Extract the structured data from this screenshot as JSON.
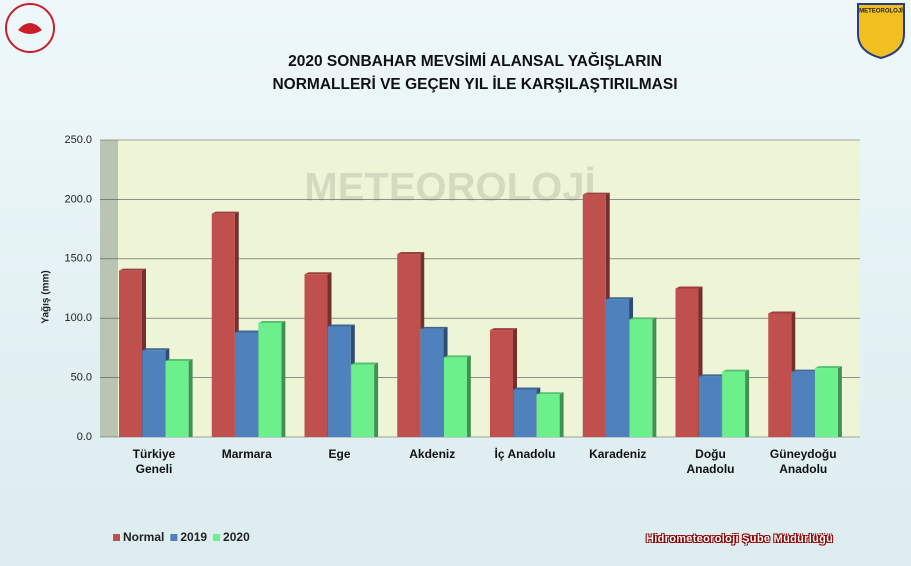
{
  "chart_data": {
    "type": "bar",
    "title": "2020 SONBAHAR MEVSİMİ ALANSAL YAĞIŞLARIN\nNORMALLERİ VE GEÇEN YIL İLE KARŞILAŞTIRILMASI",
    "y_label": "Yağış (mm)",
    "footer": "Hidrometeoroloji Şube Müdürlüğü",
    "logo_text": "METEOROLOJİ",
    "categories": [
      "Türkiye\nGeneli",
      "Marmara",
      "Ege",
      "Akdeniz",
      "İç Anadolu",
      "Karadeniz",
      "Doğu\nAnadolu",
      "Güneydoğu\nAnadolu"
    ],
    "series": [
      {
        "name": "Normal",
        "color": "#c0504d",
        "values": [
          140,
          188,
          137,
          154,
          90,
          204,
          125,
          104
        ]
      },
      {
        "name": "2019",
        "color": "#4f81bd",
        "values": [
          73,
          88,
          93,
          91,
          40,
          116,
          51,
          55
        ]
      },
      {
        "name": "2020",
        "color": "#6cf08c",
        "values": [
          64,
          96,
          61,
          67,
          36,
          99,
          55,
          58
        ]
      }
    ],
    "ylim": [
      0,
      250
    ],
    "yticks": [
      {
        "value": 0,
        "label": "0.0"
      },
      {
        "value": 50,
        "label": "50.0"
      },
      {
        "value": 100,
        "label": "100.0"
      },
      {
        "value": 150,
        "label": "150.0"
      },
      {
        "value": 200,
        "label": "200.0"
      },
      {
        "value": 250,
        "label": "250.0"
      }
    ],
    "grid": true
  }
}
